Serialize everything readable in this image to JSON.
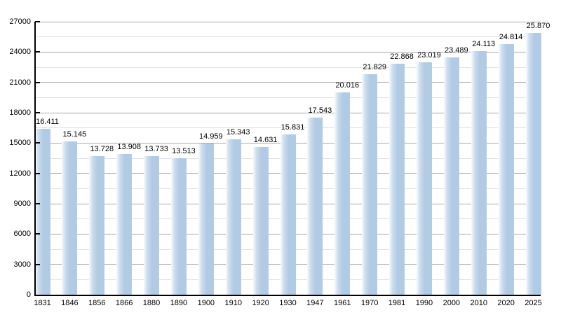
{
  "chart_data": {
    "type": "bar",
    "title": "",
    "xlabel": "",
    "ylabel": "",
    "categories": [
      "1831",
      "1846",
      "1856",
      "1866",
      "1880",
      "1890",
      "1900",
      "1910",
      "1920",
      "1930",
      "1947",
      "1961",
      "1970",
      "1981",
      "1990",
      "2000",
      "2010",
      "2020",
      "2025"
    ],
    "values": [
      16411,
      15145,
      13728,
      13908,
      13733,
      13513,
      14959,
      15343,
      14631,
      15831,
      17543,
      20016,
      21829,
      22868,
      23019,
      23489,
      24113,
      24814,
      25870
    ],
    "value_labels": [
      "16.411",
      "15.145",
      "13.728",
      "13.908",
      "13.733",
      "13.513",
      "14.959",
      "15.343",
      "14.631",
      "15.831",
      "17.543",
      "20.016",
      "21.829",
      "22.868",
      "23.019",
      "23.489",
      "24.113",
      "24.814",
      "25.870"
    ],
    "ylim": [
      0,
      27000
    ],
    "ytick_interval": 3000,
    "minor_gridline_interval": 1500,
    "ytick_labels": [
      "0",
      "3000",
      "6000",
      "9000",
      "12000",
      "15000",
      "18000",
      "21000",
      "24000",
      "27000"
    ],
    "grid": true,
    "legend": null,
    "colors": {
      "bar_main": "#b2cbe5",
      "bar_gradient_start": "#f7fafd",
      "bar_gradient_mid": "#cdddee",
      "major_gridline": "#a8a8a8",
      "minor_gridline": "#e2e2e2",
      "axis": "#000000",
      "text": "#000000",
      "background": "#ffffff"
    }
  }
}
